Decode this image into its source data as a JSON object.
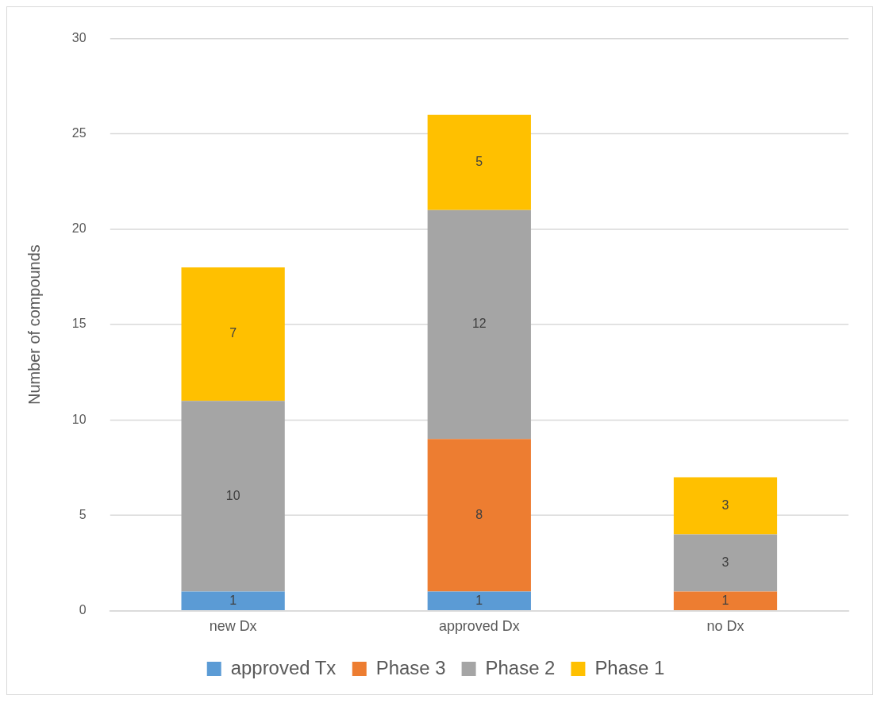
{
  "chart_data": {
    "type": "bar",
    "stacked": true,
    "ylabel": "Number of compounds",
    "categories": [
      "new Dx",
      "approved Dx",
      "no Dx"
    ],
    "series": [
      {
        "name": "approved Tx",
        "color": "#5b9bd5",
        "values": [
          1,
          1,
          null
        ]
      },
      {
        "name": "Phase 3",
        "color": "#ed7d31",
        "values": [
          null,
          8,
          1
        ]
      },
      {
        "name": "Phase 2",
        "color": "#a5a5a5",
        "values": [
          10,
          12,
          3
        ]
      },
      {
        "name": "Phase 1",
        "color": "#ffc000",
        "values": [
          7,
          5,
          3
        ]
      }
    ],
    "ylim": [
      0,
      30
    ],
    "yticks": [
      0,
      5,
      10,
      15,
      20,
      25,
      30
    ],
    "grid": "y",
    "legend": "bottom",
    "data_labels": true
  }
}
